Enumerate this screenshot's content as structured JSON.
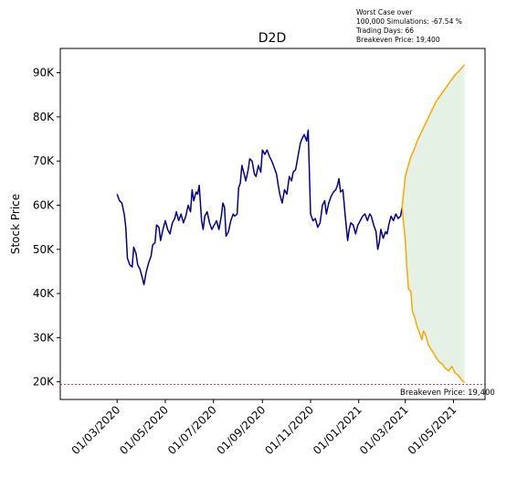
{
  "chart_data": {
    "type": "line",
    "title": "D2D",
    "ylabel": "Stock Price",
    "xlabel": "",
    "xlim": [
      "2019-12-20",
      "2021-06-10"
    ],
    "ylim": [
      16000,
      95500
    ],
    "grid": false,
    "y_ticks": [
      20000,
      30000,
      40000,
      50000,
      60000,
      70000,
      80000,
      90000
    ],
    "y_tick_labels": [
      "20K",
      "30K",
      "40K",
      "50K",
      "60K",
      "70K",
      "80K",
      "90K"
    ],
    "x_ticks": [
      "2020-03-01",
      "2020-05-01",
      "2020-07-01",
      "2020-09-01",
      "2020-11-01",
      "2021-01-01",
      "2021-03-01",
      "2021-05-01"
    ],
    "x_tick_labels": [
      "01/03/2020",
      "01/05/2020",
      "01/07/2020",
      "01/09/2020",
      "01/11/2020",
      "01/01/2021",
      "01/03/2021",
      "01/05/2021"
    ],
    "simulation_note": [
      "Worst Case over",
      "100,000 Simulations: -67.54 %",
      "Trading Days: 66",
      "Breakeven Price: 19,400"
    ],
    "breakeven": {
      "value": 19400,
      "label": "Breakeven Price: 19,400",
      "color": "#d62728"
    },
    "series": [
      {
        "color": "#00008b",
        "points": [
          [
            "2020-03-01",
            62500
          ],
          [
            "2020-03-04",
            61000
          ],
          [
            "2020-03-07",
            60500
          ],
          [
            "2020-03-10",
            58000
          ],
          [
            "2020-03-12",
            55000
          ],
          [
            "2020-03-14",
            48000
          ],
          [
            "2020-03-17",
            46500
          ],
          [
            "2020-03-20",
            46000
          ],
          [
            "2020-03-22",
            50500
          ],
          [
            "2020-03-25",
            49000
          ],
          [
            "2020-03-27",
            46500
          ],
          [
            "2020-03-30",
            45500
          ],
          [
            "2020-04-02",
            43500
          ],
          [
            "2020-04-04",
            42000
          ],
          [
            "2020-04-07",
            45000
          ],
          [
            "2020-04-10",
            47000
          ],
          [
            "2020-04-13",
            48500
          ],
          [
            "2020-04-15",
            51000
          ],
          [
            "2020-04-18",
            51500
          ],
          [
            "2020-04-20",
            55500
          ],
          [
            "2020-04-23",
            55000
          ],
          [
            "2020-04-25",
            52000
          ],
          [
            "2020-04-28",
            54500
          ],
          [
            "2020-05-01",
            56500
          ],
          [
            "2020-05-04",
            54500
          ],
          [
            "2020-05-07",
            53500
          ],
          [
            "2020-05-10",
            56000
          ],
          [
            "2020-05-13",
            57000
          ],
          [
            "2020-05-15",
            58500
          ],
          [
            "2020-05-18",
            56500
          ],
          [
            "2020-05-21",
            58000
          ],
          [
            "2020-05-24",
            56000
          ],
          [
            "2020-05-27",
            57500
          ],
          [
            "2020-05-30",
            60000
          ],
          [
            "2020-06-02",
            58500
          ],
          [
            "2020-06-04",
            63500
          ],
          [
            "2020-06-06",
            61000
          ],
          [
            "2020-06-09",
            63000
          ],
          [
            "2020-06-11",
            62500
          ],
          [
            "2020-06-13",
            64500
          ],
          [
            "2020-06-16",
            56500
          ],
          [
            "2020-06-18",
            54500
          ],
          [
            "2020-06-20",
            57500
          ],
          [
            "2020-06-23",
            58500
          ],
          [
            "2020-06-26",
            56000
          ],
          [
            "2020-06-29",
            54500
          ],
          [
            "2020-07-02",
            55500
          ],
          [
            "2020-07-05",
            56500
          ],
          [
            "2020-07-08",
            54500
          ],
          [
            "2020-07-11",
            57500
          ],
          [
            "2020-07-13",
            60500
          ],
          [
            "2020-07-15",
            59500
          ],
          [
            "2020-07-17",
            53000
          ],
          [
            "2020-07-20",
            54000
          ],
          [
            "2020-07-23",
            56500
          ],
          [
            "2020-07-26",
            58000
          ],
          [
            "2020-07-28",
            57500
          ],
          [
            "2020-07-31",
            58000
          ],
          [
            "2020-08-02",
            64000
          ],
          [
            "2020-08-04",
            65000
          ],
          [
            "2020-08-06",
            69000
          ],
          [
            "2020-08-09",
            67000
          ],
          [
            "2020-08-11",
            65500
          ],
          [
            "2020-08-14",
            68000
          ],
          [
            "2020-08-16",
            70500
          ],
          [
            "2020-08-19",
            70000
          ],
          [
            "2020-08-22",
            67000
          ],
          [
            "2020-08-24",
            66500
          ],
          [
            "2020-08-27",
            69000
          ],
          [
            "2020-08-30",
            67500
          ],
          [
            "2020-09-01",
            72500
          ],
          [
            "2020-09-04",
            71500
          ],
          [
            "2020-09-07",
            72500
          ],
          [
            "2020-09-10",
            71000
          ],
          [
            "2020-09-13",
            70000
          ],
          [
            "2020-09-16",
            68500
          ],
          [
            "2020-09-19",
            67000
          ],
          [
            "2020-09-21",
            64500
          ],
          [
            "2020-09-23",
            62500
          ],
          [
            "2020-09-26",
            60500
          ],
          [
            "2020-09-29",
            63500
          ],
          [
            "2020-10-02",
            62500
          ],
          [
            "2020-10-05",
            66500
          ],
          [
            "2020-10-08",
            65500
          ],
          [
            "2020-10-10",
            67500
          ],
          [
            "2020-10-13",
            68000
          ],
          [
            "2020-10-16",
            71000
          ],
          [
            "2020-10-19",
            74000
          ],
          [
            "2020-10-21",
            75000
          ],
          [
            "2020-10-24",
            76000
          ],
          [
            "2020-10-27",
            74500
          ],
          [
            "2020-10-29",
            77000
          ],
          [
            "2020-11-01",
            58000
          ],
          [
            "2020-11-04",
            56500
          ],
          [
            "2020-11-07",
            57000
          ],
          [
            "2020-11-10",
            55000
          ],
          [
            "2020-11-13",
            56000
          ],
          [
            "2020-11-16",
            60000
          ],
          [
            "2020-11-19",
            61000
          ],
          [
            "2020-11-21",
            58000
          ],
          [
            "2020-11-24",
            60500
          ],
          [
            "2020-11-27",
            62000
          ],
          [
            "2020-11-30",
            63000
          ],
          [
            "2020-12-03",
            63500
          ],
          [
            "2020-12-05",
            64500
          ],
          [
            "2020-12-07",
            66000
          ],
          [
            "2020-12-09",
            63000
          ],
          [
            "2020-12-12",
            63500
          ],
          [
            "2020-12-15",
            57500
          ],
          [
            "2020-12-18",
            52000
          ],
          [
            "2020-12-20",
            54500
          ],
          [
            "2020-12-22",
            56000
          ],
          [
            "2020-12-25",
            55500
          ],
          [
            "2020-12-28",
            53500
          ],
          [
            "2020-12-31",
            55500
          ],
          [
            "2021-01-03",
            56500
          ],
          [
            "2021-01-06",
            57500
          ],
          [
            "2021-01-09",
            58000
          ],
          [
            "2021-01-12",
            56500
          ],
          [
            "2021-01-15",
            58000
          ],
          [
            "2021-01-17",
            57500
          ],
          [
            "2021-01-20",
            55500
          ],
          [
            "2021-01-23",
            54000
          ],
          [
            "2021-01-25",
            50000
          ],
          [
            "2021-01-27",
            51500
          ],
          [
            "2021-01-29",
            54500
          ],
          [
            "2021-02-01",
            52500
          ],
          [
            "2021-02-04",
            54000
          ],
          [
            "2021-02-06",
            53500
          ],
          [
            "2021-02-08",
            55500
          ],
          [
            "2021-02-11",
            57500
          ],
          [
            "2021-02-14",
            56500
          ],
          [
            "2021-02-17",
            58000
          ],
          [
            "2021-02-20",
            57000
          ],
          [
            "2021-02-23",
            57500
          ],
          [
            "2021-02-25",
            59500
          ]
        ]
      },
      {
        "color": "#ffa500",
        "points": [
          [
            "2021-02-25",
            59500
          ],
          [
            "2021-03-01",
            66500
          ],
          [
            "2021-03-04",
            68500
          ],
          [
            "2021-03-08",
            71000
          ],
          [
            "2021-03-12",
            72500
          ],
          [
            "2021-03-16",
            74500
          ],
          [
            "2021-03-20",
            76000
          ],
          [
            "2021-03-24",
            77500
          ],
          [
            "2021-03-28",
            79000
          ],
          [
            "2021-04-01",
            80500
          ],
          [
            "2021-04-05",
            82000
          ],
          [
            "2021-04-09",
            83500
          ],
          [
            "2021-04-13",
            84500
          ],
          [
            "2021-04-17",
            85500
          ],
          [
            "2021-04-21",
            86500
          ],
          [
            "2021-04-25",
            87500
          ],
          [
            "2021-04-29",
            88500
          ],
          [
            "2021-05-03",
            89500
          ],
          [
            "2021-05-07",
            90200
          ],
          [
            "2021-05-11",
            91000
          ],
          [
            "2021-05-15",
            91800
          ]
        ]
      },
      {
        "color": "#ffa500",
        "points": [
          [
            "2021-02-25",
            59500
          ],
          [
            "2021-03-01",
            52000
          ],
          [
            "2021-03-03",
            46000
          ],
          [
            "2021-03-05",
            41000
          ],
          [
            "2021-03-08",
            40500
          ],
          [
            "2021-03-10",
            36000
          ],
          [
            "2021-03-13",
            34500
          ],
          [
            "2021-03-16",
            32500
          ],
          [
            "2021-03-19",
            31000
          ],
          [
            "2021-03-22",
            29500
          ],
          [
            "2021-03-24",
            31500
          ],
          [
            "2021-03-27",
            30500
          ],
          [
            "2021-03-30",
            28500
          ],
          [
            "2021-04-02",
            27500
          ],
          [
            "2021-04-06",
            26500
          ],
          [
            "2021-04-09",
            25500
          ],
          [
            "2021-04-13",
            24500
          ],
          [
            "2021-04-17",
            24000
          ],
          [
            "2021-04-21",
            23000
          ],
          [
            "2021-04-25",
            22500
          ],
          [
            "2021-04-29",
            23500
          ],
          [
            "2021-05-03",
            22000
          ],
          [
            "2021-05-07",
            21500
          ],
          [
            "2021-05-11",
            20500
          ],
          [
            "2021-05-15",
            19800
          ]
        ]
      }
    ],
    "band": {
      "color": "#e5f1e5",
      "between_series": [
        1,
        2
      ]
    }
  }
}
